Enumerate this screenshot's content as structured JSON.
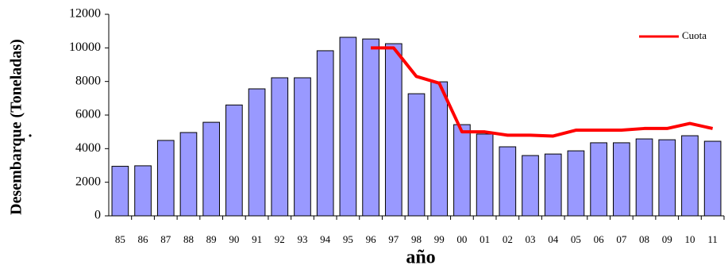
{
  "chart_data": {
    "type": "bar",
    "y_label": "Desembarque (Toneladas)",
    "y_label_mark": ".",
    "x_label": "año",
    "categories": [
      "85",
      "86",
      "87",
      "88",
      "89",
      "90",
      "91",
      "92",
      "93",
      "94",
      "95",
      "96",
      "97",
      "98",
      "99",
      "00",
      "01",
      "02",
      "03",
      "04",
      "05",
      "06",
      "07",
      "08",
      "09",
      "10",
      "11"
    ],
    "series": [
      {
        "type": "bar",
        "color": "#9999ff",
        "values": [
          2950,
          2980,
          4490,
          4960,
          5570,
          6600,
          7560,
          8220,
          8220,
          9830,
          10630,
          10530,
          10250,
          7270,
          7980,
          5430,
          4870,
          4110,
          3590,
          3680,
          3870,
          4350,
          4350,
          4580,
          4530,
          4770,
          4440
        ]
      },
      {
        "type": "line",
        "name": "Cuota",
        "color": "#ff0000",
        "values": [
          null,
          null,
          null,
          null,
          null,
          null,
          null,
          null,
          null,
          null,
          null,
          10000,
          10000,
          8300,
          7900,
          5000,
          5000,
          4800,
          4800,
          4750,
          5100,
          5100,
          5100,
          5200,
          5200,
          5500,
          5200
        ]
      }
    ],
    "ylim": [
      0,
      12000
    ],
    "yticks": [
      0,
      2000,
      4000,
      6000,
      8000,
      10000,
      12000
    ],
    "legend": "top-right"
  }
}
